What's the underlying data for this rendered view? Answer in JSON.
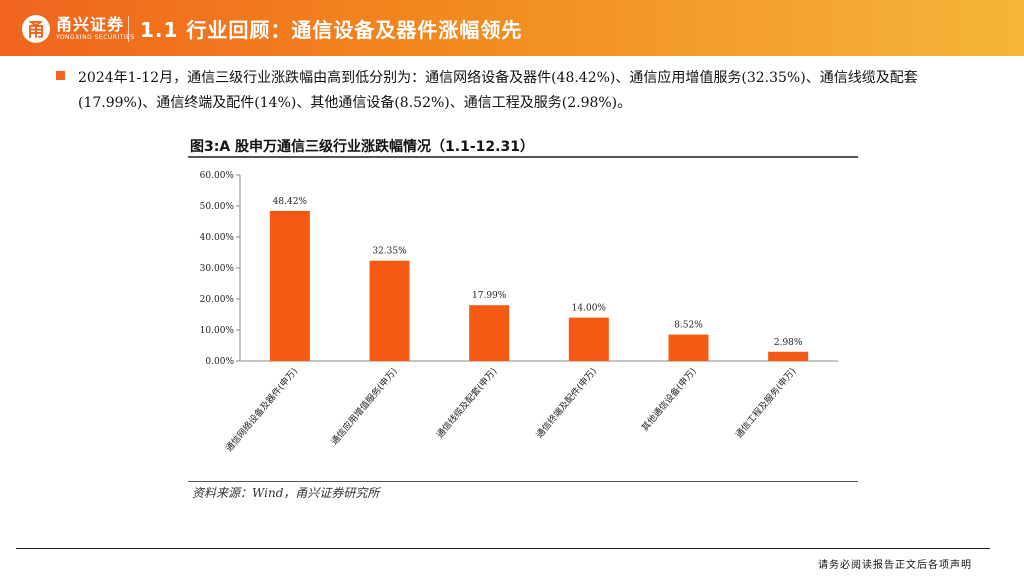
{
  "header": {
    "logo_text": "甬兴证券",
    "logo_subtext": "YONGXING SECURITIES",
    "title": "1.1 行业回顾：通信设备及器件涨幅领先"
  },
  "bullet": {
    "text": "2024年1-12月，通信三级行业涨跌幅由高到低分别为：通信网络设备及器件(48.42%)、通信应用增值服务(32.35%)、通信线缆及配套(17.99%)、通信终端及配件(14%)、其他通信设备(8.52%)、通信工程及服务(2.98%)。"
  },
  "figure": {
    "title": "图3:A 股申万通信三级行业涨跌幅情况（1.1-12.31）",
    "source": "资料来源：Wind，甬兴证券研究所"
  },
  "chart_data": {
    "type": "bar",
    "categories": [
      "通信网络设备及器件(申万)",
      "通信应用增值服务(申万)",
      "通信线缆及配套(申万)",
      "通信终端及配件(申万)",
      "其他通信设备(申万)",
      "通信工程及服务(申万)"
    ],
    "values": [
      48.42,
      32.35,
      17.99,
      14.0,
      8.52,
      2.98
    ],
    "value_labels": [
      "48.42%",
      "32.35%",
      "17.99%",
      "14.00%",
      "8.52%",
      "2.98%"
    ],
    "yticks": [
      "0.00%",
      "10.00%",
      "20.00%",
      "30.00%",
      "40.00%",
      "50.00%",
      "60.00%"
    ],
    "ylim": [
      0,
      60
    ],
    "grid": false,
    "bar_color": "#f55a14"
  },
  "footer": {
    "disclaimer": "请务必阅读报告正文后各项声明"
  }
}
